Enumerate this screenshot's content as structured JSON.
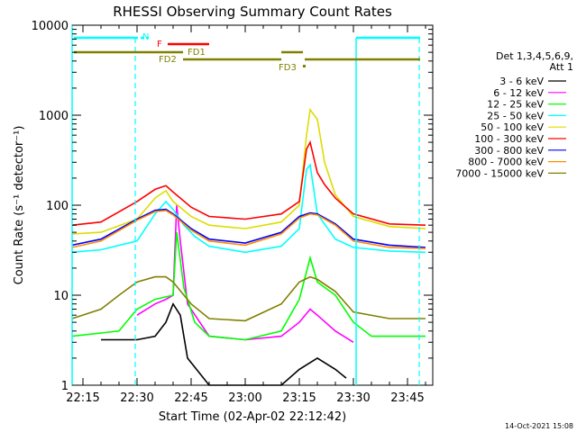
{
  "chart_data": {
    "type": "line",
    "title": "RHESSI Observing Summary Count Rates",
    "xlabel": "Start Time (02-Apr-02 22:12:42)",
    "ylabel": "Count Rate (s⁻¹ detector⁻¹)",
    "y_scale": "log",
    "ylim": [
      1,
      10000
    ],
    "xlim": [
      "22:12",
      "23:52"
    ],
    "x_ticks": [
      "22:15",
      "22:30",
      "22:45",
      "23:00",
      "23:15",
      "23:30",
      "23:45"
    ],
    "y_ticks": [
      "1",
      "10",
      "100",
      "1000",
      "10000"
    ],
    "legend_title": [
      "Det 1,3,4,5,6,9,",
      "Att 1"
    ],
    "legend_position": "right",
    "series": [
      {
        "name": "3 - 6 keV",
        "color": "#000000",
        "x": [
          "22:20",
          "22:30",
          "22:35",
          "22:38",
          "22:40",
          "22:42",
          "22:44",
          "22:50",
          "23:00",
          "23:10",
          "23:15",
          "23:20",
          "23:25",
          "23:28"
        ],
        "y": [
          3.2,
          3.2,
          3.5,
          5,
          8,
          6,
          2,
          1,
          1,
          1,
          1.5,
          2,
          1.5,
          1.2
        ]
      },
      {
        "name": "6 - 12 keV",
        "color": "#ff00ff",
        "x": [
          "22:30",
          "22:35",
          "22:38",
          "22:40",
          "22:41",
          "22:42",
          "22:44",
          "22:50",
          "23:00",
          "23:10",
          "23:15",
          "23:18",
          "23:20",
          "23:25",
          "23:30"
        ],
        "y": [
          6,
          8,
          9,
          10,
          100,
          40,
          8,
          3.5,
          3.2,
          3.5,
          5,
          7,
          6,
          4,
          3
        ]
      },
      {
        "name": "12 - 25 keV",
        "color": "#00ff00",
        "x": [
          "22:12",
          "22:25",
          "22:30",
          "22:35",
          "22:40",
          "22:41",
          "22:43",
          "22:46",
          "22:50",
          "23:00",
          "23:10",
          "23:15",
          "23:18",
          "23:20",
          "23:25",
          "23:30",
          "23:35",
          "23:50"
        ],
        "y": [
          3.5,
          4,
          7,
          9,
          10,
          50,
          12,
          5,
          3.5,
          3.2,
          4,
          9,
          26,
          14,
          10,
          5,
          3.5,
          3.5
        ]
      },
      {
        "name": "25 - 50 keV",
        "color": "#00ffff",
        "x": [
          "22:12",
          "22:20",
          "22:30",
          "22:35",
          "22:38",
          "22:40",
          "22:43",
          "22:46",
          "22:50",
          "23:00",
          "23:10",
          "23:15",
          "23:17",
          "23:18",
          "23:20",
          "23:25",
          "23:30",
          "23:40",
          "23:50"
        ],
        "y": [
          30,
          32,
          40,
          80,
          110,
          90,
          60,
          45,
          35,
          30,
          35,
          55,
          250,
          280,
          80,
          42,
          34,
          31,
          30
        ]
      },
      {
        "name": "50 - 100 keV",
        "color": "#dddd00",
        "x": [
          "22:12",
          "22:20",
          "22:30",
          "22:35",
          "22:38",
          "22:40",
          "22:45",
          "22:50",
          "23:00",
          "23:10",
          "23:15",
          "23:17",
          "23:18",
          "23:20",
          "23:22",
          "23:25",
          "23:30",
          "23:40",
          "23:50"
        ],
        "y": [
          48,
          50,
          70,
          120,
          145,
          110,
          75,
          60,
          55,
          65,
          100,
          600,
          1150,
          900,
          300,
          130,
          75,
          58,
          55
        ]
      },
      {
        "name": "100 - 300 keV",
        "color": "#ff0000",
        "x": [
          "22:12",
          "22:20",
          "22:30",
          "22:35",
          "22:38",
          "22:40",
          "22:45",
          "22:50",
          "23:00",
          "23:10",
          "23:15",
          "23:17",
          "23:18",
          "23:20",
          "23:22",
          "23:25",
          "23:30",
          "23:40",
          "23:50"
        ],
        "y": [
          60,
          65,
          110,
          150,
          165,
          140,
          95,
          75,
          70,
          80,
          110,
          420,
          500,
          230,
          170,
          120,
          80,
          62,
          60
        ]
      },
      {
        "name": "300 - 800 keV",
        "color": "#0000ff",
        "x": [
          "22:12",
          "22:20",
          "22:30",
          "22:35",
          "22:38",
          "22:40",
          "22:45",
          "22:50",
          "23:00",
          "23:10",
          "23:15",
          "23:18",
          "23:20",
          "23:25",
          "23:30",
          "23:40",
          "23:50"
        ],
        "y": [
          36,
          42,
          70,
          88,
          90,
          80,
          55,
          42,
          38,
          50,
          75,
          82,
          80,
          62,
          42,
          36,
          34
        ]
      },
      {
        "name": "800 - 7000 keV",
        "color": "#ff8c00",
        "x": [
          "22:12",
          "22:20",
          "22:30",
          "22:35",
          "22:38",
          "22:40",
          "22:45",
          "22:50",
          "23:00",
          "23:10",
          "23:15",
          "23:18",
          "23:20",
          "23:25",
          "23:30",
          "23:40",
          "23:50"
        ],
        "y": [
          34,
          40,
          68,
          85,
          87,
          78,
          53,
          40,
          36,
          48,
          72,
          80,
          78,
          60,
          40,
          34,
          33
        ]
      },
      {
        "name": "7000 - 15000 keV",
        "color": "#808000",
        "x": [
          "22:12",
          "22:20",
          "22:25",
          "22:30",
          "22:35",
          "22:38",
          "22:40",
          "22:45",
          "22:50",
          "23:00",
          "23:10",
          "23:15",
          "23:18",
          "23:20",
          "23:25",
          "23:30",
          "23:40",
          "23:50"
        ],
        "y": [
          5.5,
          7,
          10,
          14,
          16,
          16,
          14,
          8,
          5.5,
          5.2,
          8,
          14,
          16,
          15,
          11,
          6.5,
          5.5,
          5.5
        ]
      }
    ],
    "flags": [
      {
        "label": "N",
        "color": "#00ffff"
      },
      {
        "label": "F",
        "color": "#ff0000"
      },
      {
        "label": "FD1",
        "color": "#808000"
      },
      {
        "label": "FD2",
        "color": "#808000"
      },
      {
        "label": "FD3",
        "color": "#808000"
      }
    ],
    "footer_date": "14-Oct-2021 15:08"
  }
}
